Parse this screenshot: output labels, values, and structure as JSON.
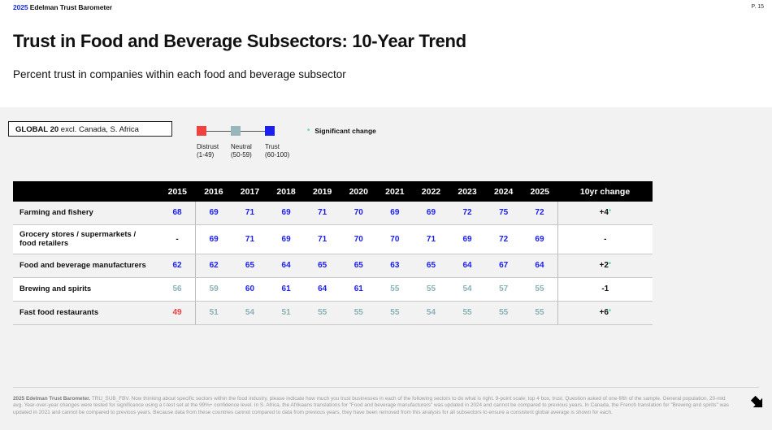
{
  "header": {
    "brand_year": "2025",
    "brand_name": "Edelman Trust Barometer",
    "page_number": "P. 15"
  },
  "title": "Trust in Food and Beverage Subsectors: 10-Year Trend",
  "subtitle": "Percent trust in companies within each food and beverage subsector",
  "scope": {
    "bold": "GLOBAL 20",
    "rest": " excl. Canada, S. Africa"
  },
  "legend": {
    "items": [
      {
        "label": "Distrust",
        "range": "(1-49)",
        "color": "#f04040"
      },
      {
        "label": "Neutral",
        "range": "(50-59)",
        "color": "#97b7bd"
      },
      {
        "label": "Trust",
        "range": "(60-100)",
        "color": "#1a1ff0"
      }
    ],
    "significant": "Significant change"
  },
  "table": {
    "columns": [
      "2015",
      "2016",
      "2017",
      "2018",
      "2019",
      "2020",
      "2021",
      "2022",
      "2023",
      "2024",
      "2025"
    ],
    "change_header": "10yr change",
    "rows": [
      {
        "label": "Farming and fishery",
        "values": [
          "68",
          "69",
          "71",
          "69",
          "71",
          "70",
          "69",
          "69",
          "72",
          "75",
          "72"
        ],
        "change": "+4",
        "sig": true
      },
      {
        "label": "Grocery stores / supermarkets / food retailers",
        "values": [
          "-",
          "69",
          "71",
          "69",
          "71",
          "70",
          "70",
          "71",
          "69",
          "72",
          "69"
        ],
        "change": "-",
        "sig": false
      },
      {
        "label": "Food and beverage manufacturers",
        "values": [
          "62",
          "62",
          "65",
          "64",
          "65",
          "65",
          "63",
          "65",
          "64",
          "67",
          "64"
        ],
        "change": "+2",
        "sig": true
      },
      {
        "label": "Brewing and spirits",
        "values": [
          "56",
          "59",
          "60",
          "61",
          "64",
          "61",
          "55",
          "55",
          "54",
          "57",
          "55"
        ],
        "change": "-1",
        "sig": false
      },
      {
        "label": "Fast food restaurants",
        "values": [
          "49",
          "51",
          "54",
          "51",
          "55",
          "55",
          "55",
          "54",
          "55",
          "55",
          "55"
        ],
        "change": "+6",
        "sig": true
      }
    ]
  },
  "footnote": {
    "bold": "2025 Edelman Trust Barometer.",
    "text": " TRU_SUB_FBV. Now thinking about specific sectors within the food industry, please indicate how much you trust businesses in each of the following sectors to do what is right. 9-point scale; top 4 box, trust. Question asked of one-fifth of the sample. General population, 20-mkt avg. Year-over-year changes were tested for significance using a t-test set at the 99%+ confidence level. In S. Africa, the Afrikaans translations for \"Food and beverage manufacturers\" was updated in 2024 and cannot be compared to previous years. In Canada, the French translation for \"Brewing and spirits\" was updated in 2021 and cannot be compared to previous years. Because data from these countries cannot compared to data from previous years, they have been removed from this analysis for all subsectors to ensure a consistent global average is shown for each."
  },
  "nav": {
    "next_icon": "arrow-next-icon"
  }
}
